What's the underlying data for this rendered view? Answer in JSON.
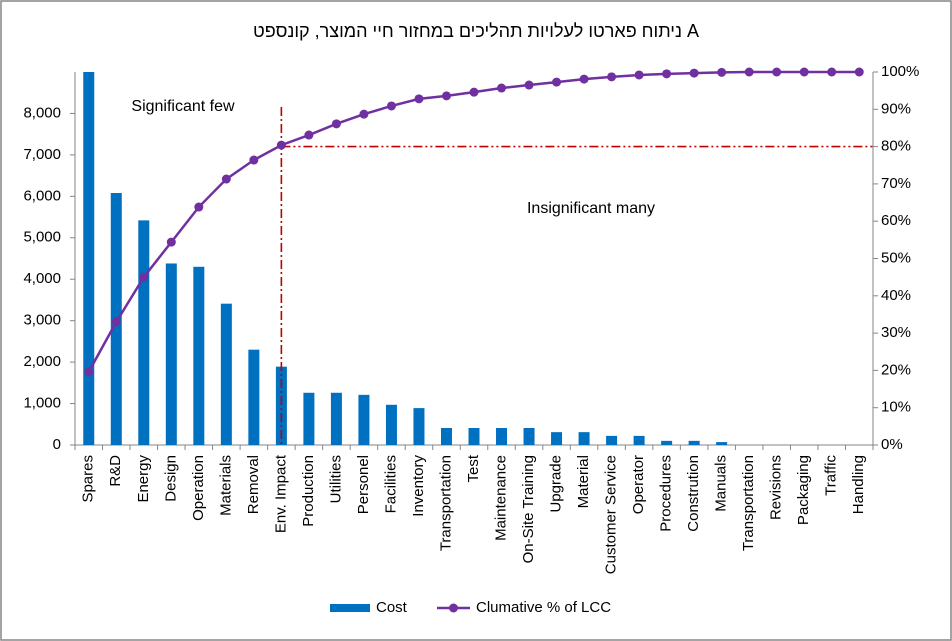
{
  "chart_data": {
    "type": "pareto",
    "title": "ניתוח פארטו לעלויות תהליכים במחזור חיי המוצר, קונספט A",
    "categories": [
      "Spares",
      "R&D",
      "Energy",
      "Design",
      "Operation",
      "Materials",
      "Removal",
      "Env. Impact",
      "Production",
      "Utilities",
      "Personel",
      "Facilities",
      "Inventory",
      "Transportation",
      "Test",
      "Maintenance",
      "On-Site Training",
      "Upgrade",
      "Material",
      "Customer Service",
      "Operator",
      "Procedures",
      "Constrution",
      "Manuals",
      "Transportation",
      "Revisions",
      "Packaging",
      "Traffic",
      "Handling"
    ],
    "series": [
      {
        "name": "Cost",
        "color": "#0070c0",
        "values": [
          9000,
          6080,
          5420,
          4380,
          4300,
          3410,
          2300,
          1890,
          1260,
          1260,
          1210,
          970,
          890,
          410,
          410,
          410,
          410,
          310,
          310,
          220,
          220,
          100,
          100,
          70,
          0,
          0,
          0,
          0,
          0
        ]
      },
      {
        "name": "Clumative % of LCC",
        "color": "#7030a0",
        "axis": "y2",
        "values": [
          19.6,
          33,
          45,
          54.4,
          63.8,
          71.3,
          76.4,
          80.4,
          83.1,
          86.1,
          88.7,
          90.9,
          92.8,
          93.6,
          94.6,
          95.7,
          96.5,
          97.3,
          98.1,
          98.7,
          99.2,
          99.5,
          99.7,
          99.9,
          100,
          100,
          100,
          100,
          100
        ]
      }
    ],
    "ylim": [
      0,
      9000
    ],
    "yticks": [
      0,
      {
        "value": 1000,
        "label": "1,000"
      },
      {
        "value": 2000,
        "label": "2,000"
      },
      {
        "value": 3000,
        "label": "3,000"
      },
      {
        "value": 4000,
        "label": "4,000"
      },
      {
        "value": 5000,
        "label": "5,000"
      },
      {
        "value": 6000,
        "label": "6,000"
      },
      {
        "value": 7000,
        "label": "7,000"
      },
      {
        "value": 8000,
        "label": "8,000"
      }
    ],
    "y2lim": [
      0,
      100
    ],
    "y2ticks": [
      {
        "value": 0,
        "label": "0%"
      },
      {
        "value": 10,
        "label": "10%"
      },
      {
        "value": 20,
        "label": "20%"
      },
      {
        "value": 30,
        "label": "30%"
      },
      {
        "value": 40,
        "label": "40%"
      },
      {
        "value": 50,
        "label": "50%"
      },
      {
        "value": 60,
        "label": "60%"
      },
      {
        "value": 70,
        "label": "70%"
      },
      {
        "value": 80,
        "label": "80%"
      },
      {
        "value": 90,
        "label": "90%"
      },
      {
        "value": 100,
        "label": "100%"
      }
    ],
    "cutoff": {
      "category_index": 7,
      "y2_value": 80,
      "color": "#c00000"
    },
    "annotations": [
      "Significant few",
      "Insignificant many"
    ],
    "legend": "bottom"
  }
}
